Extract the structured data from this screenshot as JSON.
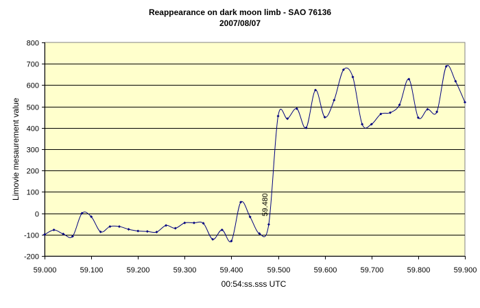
{
  "chart_data": {
    "type": "line",
    "title": "Reappearance on dark moon limb - SAO 76136",
    "subtitle": "2007/08/07",
    "xlabel": "00:54:ss.sss UTC",
    "ylabel": "Limovie mesaurement value",
    "xlim": [
      59.0,
      59.9
    ],
    "ylim": [
      -200,
      800
    ],
    "x_ticks": [
      "59.000",
      "59.100",
      "59.200",
      "59.300",
      "59.400",
      "59.500",
      "59.600",
      "59.700",
      "59.800",
      "59.900"
    ],
    "y_ticks": [
      "-200",
      "-100",
      "0",
      "100",
      "200",
      "300",
      "400",
      "500",
      "600",
      "700",
      "800"
    ],
    "grid": "horizontal",
    "colors": {
      "plot_background": "#ffffcc",
      "series": "#000080",
      "grid": "#000000"
    },
    "annotations": [
      {
        "text": "59.480",
        "x": 59.48,
        "y": 40
      }
    ],
    "series": [
      {
        "x": [
          59.0,
          59.02,
          59.04,
          59.06,
          59.08,
          59.1,
          59.12,
          59.14,
          59.16,
          59.18,
          59.2,
          59.22,
          59.24,
          59.26,
          59.28,
          59.3,
          59.32,
          59.34,
          59.36,
          59.38,
          59.4,
          59.42,
          59.44,
          59.46,
          59.48,
          59.5,
          59.52,
          59.54,
          59.56,
          59.58,
          59.6,
          59.62,
          59.64,
          59.66,
          59.68,
          59.7,
          59.72,
          59.74,
          59.76,
          59.78,
          59.8,
          59.82,
          59.84,
          59.86,
          59.88,
          59.9
        ],
        "values": [
          -100,
          -78,
          -97,
          -108,
          0,
          -16,
          -87,
          -62,
          -62,
          -75,
          -83,
          -85,
          -88,
          -57,
          -70,
          -45,
          -45,
          -47,
          -122,
          -78,
          -130,
          52,
          -17,
          -95,
          -52,
          455,
          443,
          490,
          400,
          577,
          450,
          530,
          672,
          638,
          417,
          417,
          465,
          471,
          508,
          628,
          448,
          487,
          475,
          688,
          618,
          520
        ]
      }
    ]
  }
}
